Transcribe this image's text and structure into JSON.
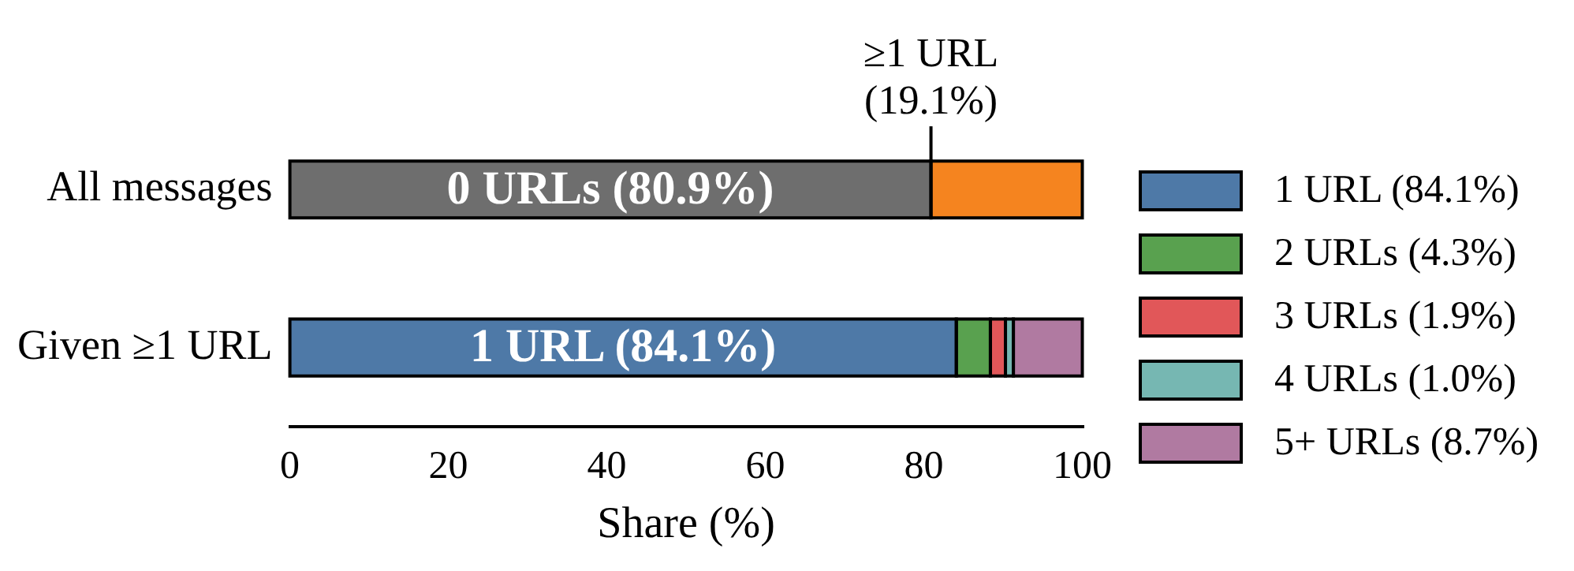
{
  "chart_data": {
    "type": "bar",
    "orientation": "horizontal",
    "stacked": true,
    "categories": [
      "All messages",
      "Given ≥1 URL"
    ],
    "series": [
      {
        "name": "0 URLs (80.9%)",
        "color": "#6e6e6e",
        "values": [
          80.9,
          null
        ]
      },
      {
        "name": "≥1 URL (19.1%)",
        "color": "#f5841f",
        "values": [
          19.1,
          null
        ]
      },
      {
        "name": "1 URL (84.1%)",
        "color": "#4e79a7",
        "values": [
          null,
          84.1
        ]
      },
      {
        "name": "2 URLs (4.3%)",
        "color": "#59a14f",
        "values": [
          null,
          4.3
        ]
      },
      {
        "name": "3 URLs (1.9%)",
        "color": "#e15759",
        "values": [
          null,
          1.9
        ]
      },
      {
        "name": "4 URLs (1.0%)",
        "color": "#76b7b2",
        "values": [
          null,
          1.0
        ]
      },
      {
        "name": "5+ URLs (8.7%)",
        "color": "#b07aa1",
        "values": [
          null,
          8.7
        ]
      }
    ],
    "xlim": [
      0,
      100
    ],
    "xticks": [
      0,
      20,
      40,
      60,
      80,
      100
    ],
    "xlabel": "Share (%)",
    "grid": false,
    "legend": "right"
  }
}
